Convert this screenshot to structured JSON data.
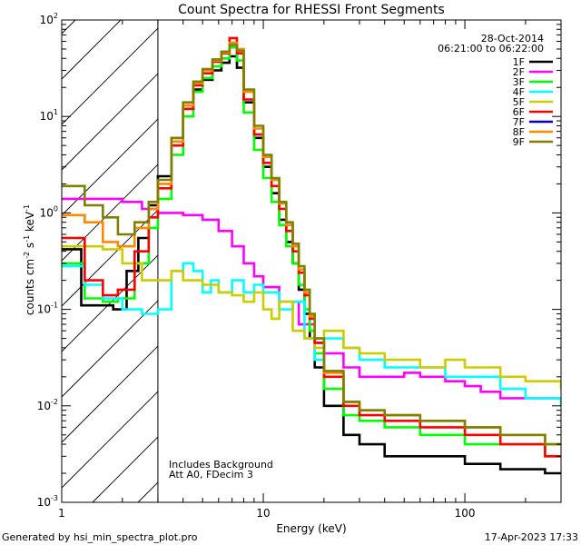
{
  "chart_data": {
    "type": "line",
    "title": "Count Spectra for RHESSI Front Segments",
    "xlabel": "Energy (keV)",
    "ylabel": {
      "base": "counts cm",
      "e1": "-2",
      "mid": " s",
      "e2": "-1",
      "unit": " keV",
      "e3": "-1"
    },
    "x_scale": "log",
    "y_scale": "log",
    "xlim": [
      1,
      300
    ],
    "ylim": [
      0.001,
      100
    ],
    "x_ticks": [
      {
        "value": 1,
        "label": "1"
      },
      {
        "value": 10,
        "label": "10"
      },
      {
        "value": 100,
        "label": "100"
      }
    ],
    "y_ticks": [
      {
        "value": 0.001,
        "base": "10",
        "exp": "-3"
      },
      {
        "value": 0.01,
        "base": "10",
        "exp": "-2"
      },
      {
        "value": 0.1,
        "base": "10",
        "exp": "-1"
      },
      {
        "value": 1,
        "base": "10",
        "exp": "0"
      },
      {
        "value": 10,
        "base": "10",
        "exp": "1"
      },
      {
        "value": 100,
        "base": "10",
        "exp": "2"
      }
    ],
    "excluded_region_keV": [
      1,
      3
    ],
    "date": "28-Oct-2014",
    "time_range": "06:21:00 to 06:22:00",
    "annotations": [
      "Includes Background",
      "Att A0, FDecim 3"
    ],
    "legend_position": "top-right",
    "series": [
      {
        "name": "1F",
        "color": "#000000",
        "points": [
          [
            1,
            0.42
          ],
          [
            1.25,
            0.11
          ],
          [
            1.5,
            0.11
          ],
          [
            1.8,
            0.1
          ],
          [
            2.1,
            0.25
          ],
          [
            2.4,
            0.55
          ],
          [
            2.7,
            1.2
          ],
          [
            3.0,
            2.4
          ],
          [
            3.5,
            6.0
          ],
          [
            4.0,
            12.0
          ],
          [
            4.5,
            19.0
          ],
          [
            5.0,
            24.0
          ],
          [
            5.6,
            30.0
          ],
          [
            6.2,
            36.0
          ],
          [
            6.8,
            42.0
          ],
          [
            7.4,
            32.0
          ],
          [
            8.0,
            14.0
          ],
          [
            9.0,
            6.0
          ],
          [
            10.0,
            3.0
          ],
          [
            11.0,
            1.6
          ],
          [
            12.0,
            0.85
          ],
          [
            13.0,
            0.5
          ],
          [
            14.0,
            0.3
          ],
          [
            15.0,
            0.16
          ],
          [
            16.0,
            0.09
          ],
          [
            17.0,
            0.05
          ],
          [
            18.0,
            0.025
          ],
          [
            20.0,
            0.01
          ],
          [
            25.0,
            0.005
          ],
          [
            30.0,
            0.004
          ],
          [
            40.0,
            0.003
          ],
          [
            60.0,
            0.003
          ],
          [
            100.0,
            0.0025
          ],
          [
            150.0,
            0.0022
          ],
          [
            250.0,
            0.002
          ],
          [
            300.0,
            0.002
          ]
        ]
      },
      {
        "name": "2F",
        "color": "#ff00ff",
        "points": [
          [
            1,
            1.4
          ],
          [
            1.5,
            1.4
          ],
          [
            2.0,
            1.3
          ],
          [
            2.5,
            1.1
          ],
          [
            3.0,
            1.0
          ],
          [
            4.0,
            0.95
          ],
          [
            5.0,
            0.85
          ],
          [
            6.0,
            0.65
          ],
          [
            7.0,
            0.45
          ],
          [
            8.0,
            0.3
          ],
          [
            9.0,
            0.22
          ],
          [
            10.0,
            0.17
          ],
          [
            12.0,
            0.12
          ],
          [
            15.0,
            0.07
          ],
          [
            18.0,
            0.045
          ],
          [
            20.0,
            0.035
          ],
          [
            25.0,
            0.025
          ],
          [
            30.0,
            0.02
          ],
          [
            40.0,
            0.02
          ],
          [
            50.0,
            0.022
          ],
          [
            60.0,
            0.02
          ],
          [
            80.0,
            0.018
          ],
          [
            100.0,
            0.016
          ],
          [
            120.0,
            0.014
          ],
          [
            150.0,
            0.012
          ],
          [
            200.0,
            0.012
          ],
          [
            250.0,
            0.012
          ],
          [
            300.0,
            0.012
          ]
        ]
      },
      {
        "name": "3F",
        "color": "#00ff00",
        "points": [
          [
            1,
            0.3
          ],
          [
            1.3,
            0.13
          ],
          [
            1.6,
            0.12
          ],
          [
            1.9,
            0.13
          ],
          [
            2.3,
            0.3
          ],
          [
            2.7,
            0.7
          ],
          [
            3.0,
            1.4
          ],
          [
            3.5,
            4.0
          ],
          [
            4.0,
            10.0
          ],
          [
            4.5,
            18.0
          ],
          [
            5.0,
            25.0
          ],
          [
            5.6,
            33.0
          ],
          [
            6.2,
            40.0
          ],
          [
            6.8,
            52.0
          ],
          [
            7.4,
            38.0
          ],
          [
            8.0,
            11.0
          ],
          [
            9.0,
            4.5
          ],
          [
            10.0,
            2.3
          ],
          [
            11.0,
            1.3
          ],
          [
            12.0,
            0.75
          ],
          [
            13.0,
            0.45
          ],
          [
            14.0,
            0.3
          ],
          [
            15.0,
            0.18
          ],
          [
            16.0,
            0.1
          ],
          [
            17.0,
            0.06
          ],
          [
            18.0,
            0.035
          ],
          [
            20.0,
            0.015
          ],
          [
            25.0,
            0.008
          ],
          [
            30.0,
            0.007
          ],
          [
            40.0,
            0.006
          ],
          [
            60.0,
            0.005
          ],
          [
            100.0,
            0.004
          ],
          [
            150.0,
            0.004
          ],
          [
            250.0,
            0.003
          ],
          [
            300.0,
            0.003
          ]
        ]
      },
      {
        "name": "4F",
        "color": "#00ffff",
        "points": [
          [
            1,
            0.28
          ],
          [
            1.3,
            0.18
          ],
          [
            1.6,
            0.13
          ],
          [
            2.0,
            0.1
          ],
          [
            2.5,
            0.09
          ],
          [
            3.0,
            0.1
          ],
          [
            3.5,
            0.25
          ],
          [
            4.0,
            0.3
          ],
          [
            4.5,
            0.25
          ],
          [
            5.0,
            0.15
          ],
          [
            5.5,
            0.2
          ],
          [
            6.0,
            0.15
          ],
          [
            7.0,
            0.2
          ],
          [
            8.0,
            0.15
          ],
          [
            9.0,
            0.18
          ],
          [
            10.0,
            0.15
          ],
          [
            12.0,
            0.1
          ],
          [
            14.0,
            0.12
          ],
          [
            16.0,
            0.05
          ],
          [
            18.0,
            0.03
          ],
          [
            20.0,
            0.05
          ],
          [
            25.0,
            0.04
          ],
          [
            30.0,
            0.03
          ],
          [
            40.0,
            0.025
          ],
          [
            60.0,
            0.025
          ],
          [
            80.0,
            0.02
          ],
          [
            100.0,
            0.02
          ],
          [
            150.0,
            0.015
          ],
          [
            200.0,
            0.012
          ],
          [
            300.0,
            0.01
          ]
        ]
      },
      {
        "name": "5F",
        "color": "#cccc00",
        "points": [
          [
            1,
            0.45
          ],
          [
            1.3,
            0.45
          ],
          [
            1.6,
            0.42
          ],
          [
            2.0,
            0.3
          ],
          [
            2.5,
            0.2
          ],
          [
            3.0,
            0.2
          ],
          [
            3.5,
            0.25
          ],
          [
            4.0,
            0.2
          ],
          [
            5.0,
            0.18
          ],
          [
            6.0,
            0.15
          ],
          [
            7.0,
            0.14
          ],
          [
            8.0,
            0.12
          ],
          [
            9.0,
            0.15
          ],
          [
            10.0,
            0.1
          ],
          [
            11.0,
            0.08
          ],
          [
            12.0,
            0.12
          ],
          [
            14.0,
            0.06
          ],
          [
            16.0,
            0.05
          ],
          [
            18.0,
            0.04
          ],
          [
            20.0,
            0.06
          ],
          [
            25.0,
            0.04
          ],
          [
            30.0,
            0.035
          ],
          [
            40.0,
            0.03
          ],
          [
            60.0,
            0.025
          ],
          [
            80.0,
            0.03
          ],
          [
            100.0,
            0.025
          ],
          [
            150.0,
            0.02
          ],
          [
            200.0,
            0.018
          ],
          [
            300.0,
            0.015
          ]
        ]
      },
      {
        "name": "6F",
        "color": "#ff0000",
        "points": [
          [
            1,
            0.55
          ],
          [
            1.3,
            0.2
          ],
          [
            1.6,
            0.14
          ],
          [
            1.9,
            0.16
          ],
          [
            2.3,
            0.4
          ],
          [
            2.7,
            0.9
          ],
          [
            3.0,
            1.8
          ],
          [
            3.5,
            5.0
          ],
          [
            4.0,
            12.0
          ],
          [
            4.5,
            21.0
          ],
          [
            5.0,
            28.0
          ],
          [
            5.6,
            37.0
          ],
          [
            6.2,
            45.0
          ],
          [
            6.8,
            65.0
          ],
          [
            7.4,
            45.0
          ],
          [
            8.0,
            15.0
          ],
          [
            9.0,
            6.5
          ],
          [
            10.0,
            3.3
          ],
          [
            11.0,
            1.9
          ],
          [
            12.0,
            1.1
          ],
          [
            13.0,
            0.65
          ],
          [
            14.0,
            0.4
          ],
          [
            15.0,
            0.24
          ],
          [
            16.0,
            0.14
          ],
          [
            17.0,
            0.08
          ],
          [
            18.0,
            0.045
          ],
          [
            20.0,
            0.02
          ],
          [
            25.0,
            0.01
          ],
          [
            30.0,
            0.008
          ],
          [
            40.0,
            0.007
          ],
          [
            60.0,
            0.006
          ],
          [
            100.0,
            0.005
          ],
          [
            150.0,
            0.004
          ],
          [
            250.0,
            0.003
          ],
          [
            300.0,
            0.003
          ]
        ]
      },
      {
        "name": "7F",
        "color": "#0000cc",
        "points": []
      },
      {
        "name": "8F",
        "color": "#ff8800",
        "points": [
          [
            1,
            0.95
          ],
          [
            1.3,
            0.8
          ],
          [
            1.6,
            0.5
          ],
          [
            1.9,
            0.45
          ],
          [
            2.3,
            0.7
          ],
          [
            2.7,
            1.1
          ],
          [
            3.0,
            2.0
          ],
          [
            3.5,
            5.5
          ],
          [
            4.0,
            13.0
          ],
          [
            4.5,
            22.0
          ],
          [
            5.0,
            30.0
          ],
          [
            5.6,
            38.0
          ],
          [
            6.2,
            46.0
          ],
          [
            6.8,
            58.0
          ],
          [
            7.4,
            50.0
          ],
          [
            8.0,
            18.0
          ],
          [
            9.0,
            7.5
          ],
          [
            10.0,
            3.8
          ],
          [
            11.0,
            2.2
          ],
          [
            12.0,
            1.25
          ],
          [
            13.0,
            0.75
          ],
          [
            14.0,
            0.45
          ],
          [
            15.0,
            0.26
          ],
          [
            16.0,
            0.15
          ],
          [
            17.0,
            0.085
          ],
          [
            18.0,
            0.05
          ],
          [
            20.0,
            0.022
          ],
          [
            25.0,
            0.011
          ],
          [
            30.0,
            0.009
          ],
          [
            40.0,
            0.008
          ],
          [
            60.0,
            0.007
          ],
          [
            100.0,
            0.006
          ],
          [
            150.0,
            0.005
          ],
          [
            250.0,
            0.004
          ],
          [
            300.0,
            0.004
          ]
        ]
      },
      {
        "name": "9F",
        "color": "#808000",
        "points": [
          [
            1,
            1.9
          ],
          [
            1.3,
            1.2
          ],
          [
            1.6,
            0.9
          ],
          [
            1.9,
            0.6
          ],
          [
            2.3,
            0.8
          ],
          [
            2.7,
            1.3
          ],
          [
            3.0,
            2.2
          ],
          [
            3.5,
            6.0
          ],
          [
            4.0,
            14.0
          ],
          [
            4.5,
            23.0
          ],
          [
            5.0,
            31.0
          ],
          [
            5.6,
            39.0
          ],
          [
            6.2,
            47.0
          ],
          [
            6.8,
            55.0
          ],
          [
            7.4,
            48.0
          ],
          [
            8.0,
            19.0
          ],
          [
            9.0,
            8.0
          ],
          [
            10.0,
            4.0
          ],
          [
            11.0,
            2.3
          ],
          [
            12.0,
            1.3
          ],
          [
            13.0,
            0.8
          ],
          [
            14.0,
            0.48
          ],
          [
            15.0,
            0.28
          ],
          [
            16.0,
            0.16
          ],
          [
            17.0,
            0.09
          ],
          [
            18.0,
            0.05
          ],
          [
            20.0,
            0.023
          ],
          [
            25.0,
            0.011
          ],
          [
            30.0,
            0.009
          ],
          [
            40.0,
            0.008
          ],
          [
            60.0,
            0.007
          ],
          [
            100.0,
            0.006
          ],
          [
            150.0,
            0.005
          ],
          [
            250.0,
            0.004
          ],
          [
            300.0,
            0.004
          ]
        ]
      }
    ]
  },
  "footer": {
    "generated_by": "Generated by hsi_min_spectra_plot.pro",
    "timestamp": "17-Apr-2023 17:33"
  }
}
